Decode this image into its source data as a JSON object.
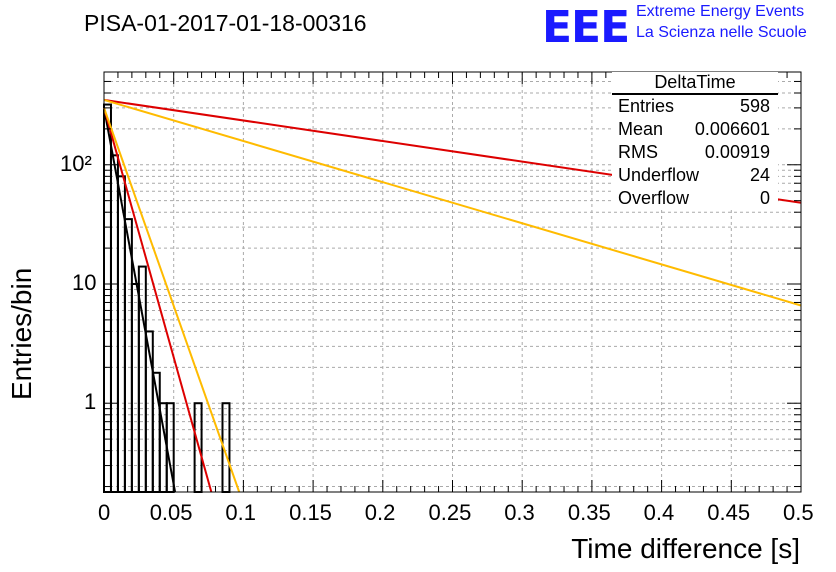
{
  "header": {
    "title": "PISA-01-2017-01-18-00316",
    "logo_text": "EEE",
    "logo_line1": "Extreme Energy Events",
    "logo_line2": "La Scienza nelle Scuole"
  },
  "stats": {
    "name": "DeltaTime",
    "rows": [
      {
        "label": "Entries",
        "value": "598"
      },
      {
        "label": "Mean",
        "value": "0.006601"
      },
      {
        "label": "RMS",
        "value": "0.00919"
      },
      {
        "label": "Underflow",
        "value": "24"
      },
      {
        "label": "Overflow",
        "value": "0"
      }
    ]
  },
  "chart_data": {
    "type": "bar",
    "title": "PISA-01-2017-01-18-00316",
    "xlabel": "Time difference [s]",
    "ylabel": "Entries/bin",
    "xlim": [
      0,
      0.5
    ],
    "ylim": [
      0.18,
      600
    ],
    "log_y": true,
    "grid": true,
    "x_ticks": [
      "0",
      "0.05",
      "0.1",
      "0.15",
      "0.2",
      "0.25",
      "0.3",
      "0.35",
      "0.4",
      "0.45",
      "0.5"
    ],
    "y_ticks": [
      "1",
      "10",
      "10²"
    ],
    "bin_width": 0.005,
    "histogram": [
      {
        "x": 0.0,
        "y": 320
      },
      {
        "x": 0.005,
        "y": 120
      },
      {
        "x": 0.01,
        "y": 80
      },
      {
        "x": 0.015,
        "y": 35
      },
      {
        "x": 0.02,
        "y": 10
      },
      {
        "x": 0.025,
        "y": 14
      },
      {
        "x": 0.03,
        "y": 4
      },
      {
        "x": 0.035,
        "y": 1.8
      },
      {
        "x": 0.04,
        "y": 1
      },
      {
        "x": 0.045,
        "y": 1
      },
      {
        "x": 0.065,
        "y": 1
      },
      {
        "x": 0.085,
        "y": 1
      }
    ],
    "fits": [
      {
        "color": "#000000",
        "points": [
          [
            0.0,
            300
          ],
          [
            0.051,
            0.18
          ]
        ]
      },
      {
        "color": "#dd0000",
        "points": [
          [
            0.0,
            300
          ],
          [
            0.077,
            0.18
          ]
        ]
      },
      {
        "color": "#ffbb00",
        "points": [
          [
            0.0,
            300
          ],
          [
            0.097,
            0.18
          ]
        ]
      },
      {
        "color": "#dd0000",
        "points": [
          [
            0.0,
            350
          ],
          [
            0.5,
            48
          ]
        ]
      },
      {
        "color": "#ffbb00",
        "points": [
          [
            0.0,
            350
          ],
          [
            0.5,
            6.6
          ]
        ]
      }
    ]
  }
}
